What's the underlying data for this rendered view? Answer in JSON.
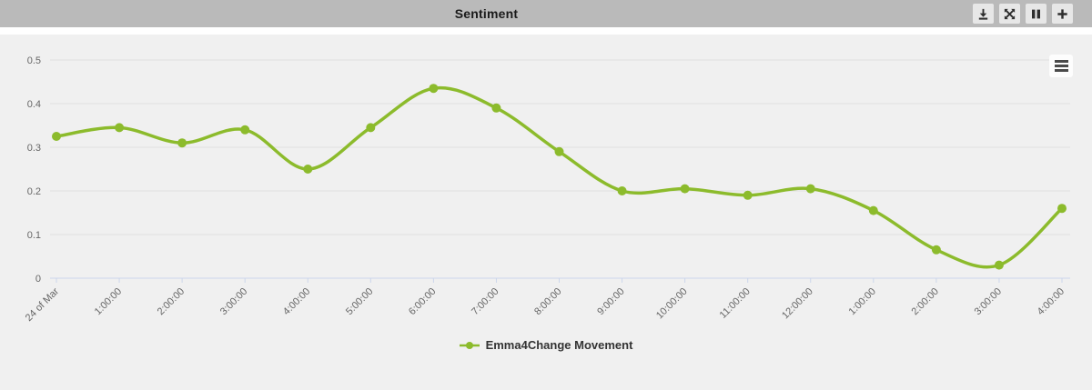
{
  "header": {
    "title": "Sentiment",
    "toolbar": [
      {
        "name": "download",
        "icon": "download-icon"
      },
      {
        "name": "expand",
        "icon": "expand-icon"
      },
      {
        "name": "pause",
        "icon": "pause-icon"
      },
      {
        "name": "add",
        "icon": "plus-icon"
      }
    ]
  },
  "chart": {
    "context_menu_icon": "hamburger-menu-icon"
  },
  "chart_data": {
    "type": "line",
    "title": "Sentiment",
    "categories": [
      "24 of Mar",
      "1:00:00",
      "2:00:00",
      "3:00:00",
      "4:00:00",
      "5:00:00",
      "6:00:00",
      "7:00:00",
      "8:00:00",
      "9:00:00",
      "10:00:00",
      "11:00:00",
      "12:00:00",
      "1:00:00",
      "2:00:00",
      "3:00:00",
      "4:00:00"
    ],
    "series": [
      {
        "name": "Emma4Change Movement",
        "color": "#8CBB2C",
        "values": [
          0.325,
          0.345,
          0.31,
          0.34,
          0.25,
          0.345,
          0.435,
          0.39,
          0.29,
          0.2,
          0.205,
          0.19,
          0.205,
          0.155,
          0.065,
          0.03,
          0.16
        ]
      }
    ],
    "xlabel": "",
    "ylabel": "",
    "ylim": [
      0,
      0.5
    ],
    "yticks": [
      0,
      0.1,
      0.2,
      0.3,
      0.4,
      0.5
    ],
    "ytick_labels": [
      "0",
      "0.1",
      "0.2",
      "0.3",
      "0.4",
      "0.5"
    ],
    "grid": true,
    "smooth": true,
    "marker": "circle",
    "legend_position": "bottom",
    "x_label_rotation": -45
  },
  "colors": {
    "header_bg": "#bababa",
    "header_text": "#1a1a1a",
    "toolbar_button_bg": "#e7e7e7",
    "toolbar_icon": "#2e2e2e",
    "chart_bg": "#f0f0f0",
    "gridline": "#e0e0e0",
    "axis_line": "#ccd6eb",
    "axis_label": "#666666",
    "legend_text": "#333333"
  }
}
